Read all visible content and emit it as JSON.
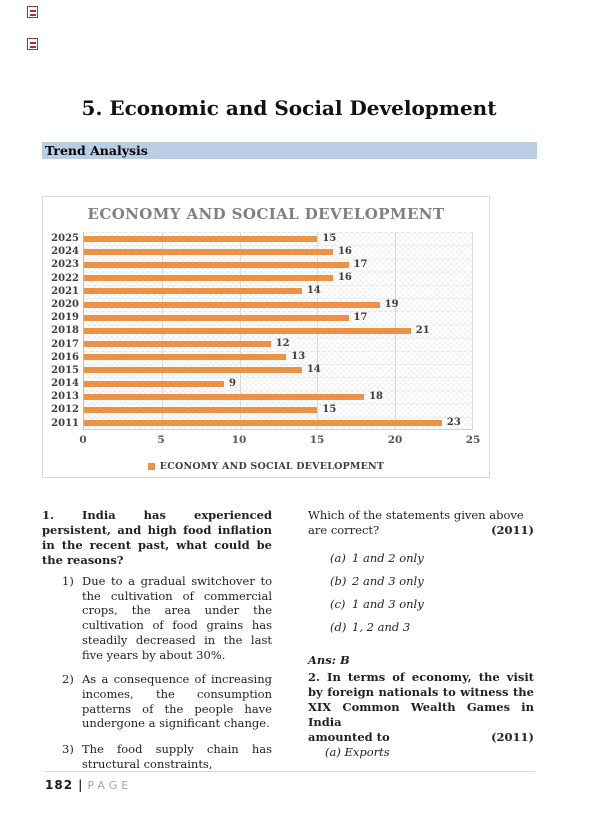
{
  "page": {
    "title": "5. Economic and Social Development",
    "section_label": "Trend Analysis"
  },
  "chart_data": {
    "type": "bar",
    "orientation": "horizontal",
    "title": "ECONOMY AND SOCIAL DEVELOPMENT",
    "legend_label": "ECONOMY AND SOCIAL DEVELOPMENT",
    "legend_position": "bottom",
    "categories": [
      "2025",
      "2024",
      "2023",
      "2022",
      "2021",
      "2020",
      "2019",
      "2018",
      "2017",
      "2016",
      "2015",
      "2014",
      "2013",
      "2012",
      "2011"
    ],
    "values": [
      15,
      16,
      17,
      16,
      14,
      19,
      17,
      21,
      12,
      13,
      14,
      9,
      18,
      15,
      23
    ],
    "xlim": [
      0,
      25
    ],
    "x_ticks": [
      0,
      5,
      10,
      15,
      20,
      25
    ],
    "grid": true,
    "bar_color": "#ED9144"
  },
  "qa": {
    "q1": {
      "heading": "1. India has experienced persistent, and high food inflation in the recent past, what could be the reasons?",
      "items": [
        {
          "num": "1)",
          "text": "Due to a gradual switchover to the cultivation of commercial crops, the area under the cultivation of food grains has steadily decreased in the last five years by about 30%."
        },
        {
          "num": "2)",
          "text": "As a consequence of increasing incomes, the consumption patterns of the people have undergone a significant change."
        },
        {
          "num": "3)",
          "text": "The food supply chain has structural constraints,"
        }
      ],
      "follow_up_line1": "Which of the statements given above",
      "follow_up_line2": "are correct?",
      "year": "(2011)",
      "options": [
        {
          "label": "(a)",
          "text": "1 and 2 only"
        },
        {
          "label": "(b)",
          "text": "2 and 3 only"
        },
        {
          "label": "(c)",
          "text": "1 and 3 only"
        },
        {
          "label": "(d)",
          "text": "1, 2 and 3"
        }
      ],
      "answer": "Ans: B"
    },
    "q2": {
      "heading_main": "2. In terms of economy, the visit by foreign nationals to witness the XIX Common Wealth Games in India",
      "heading_tail": "amounted to",
      "year": "(2011)",
      "option_a_label": "(a)",
      "option_a_text": "Exports"
    }
  },
  "footer": {
    "page_number": "182",
    "separator": "|",
    "label": "PAGE"
  }
}
